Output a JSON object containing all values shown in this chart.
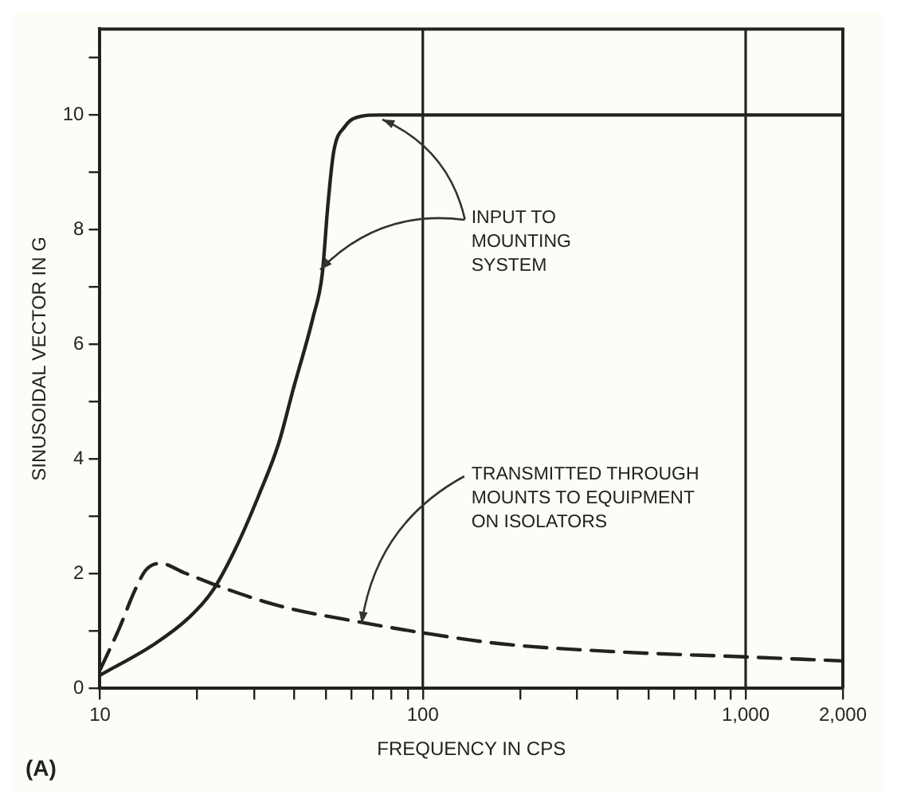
{
  "chart_data": {
    "type": "line",
    "xlabel": "FREQUENCY IN CPS",
    "ylabel": "SINUSOIDAL VECTOR IN G",
    "log": "x",
    "xlim": [
      10,
      2000
    ],
    "ylim": [
      0,
      11.5
    ],
    "xticks": [
      10,
      {
        "value": 20,
        "label": null
      },
      {
        "value": 30,
        "label": null
      },
      {
        "value": 40,
        "label": null
      },
      {
        "value": 50,
        "label": null
      },
      {
        "value": 60,
        "label": null
      },
      {
        "value": 70,
        "label": null
      },
      {
        "value": 80,
        "label": null
      },
      {
        "value": 90,
        "label": null
      },
      100,
      {
        "value": 200,
        "label": null
      },
      {
        "value": 300,
        "label": null
      },
      {
        "value": 400,
        "label": null
      },
      {
        "value": 500,
        "label": null
      },
      {
        "value": 600,
        "label": null
      },
      {
        "value": 700,
        "label": null
      },
      {
        "value": 800,
        "label": null
      },
      {
        "value": 900,
        "label": null
      },
      {
        "value": 1000,
        "label": "1,000"
      },
      {
        "value": 2000,
        "label": "2,000"
      }
    ],
    "yticks": [
      0,
      {
        "value": 1,
        "label": null
      },
      2,
      {
        "value": 3,
        "label": null
      },
      4,
      {
        "value": 5,
        "label": null
      },
      6,
      {
        "value": 7,
        "label": null
      },
      8,
      {
        "value": 9,
        "label": null
      },
      10,
      {
        "value": 11,
        "label": null
      }
    ],
    "grid": false,
    "legend": false,
    "marker": "none",
    "ref_lines": [
      {
        "axis": "x",
        "value": 100
      },
      {
        "axis": "x",
        "value": 1000
      }
    ],
    "series": [
      {
        "color": "#222222",
        "line_style": "solid",
        "x": [
          10,
          14.8,
          18.9,
          22.3,
          26.3,
          31,
          35.8,
          39.6,
          45.8,
          48.8,
          50.8,
          52.9,
          57.4,
          64.7,
          73.3,
          100,
          1000,
          2000
        ],
        "values": [
          0.23,
          0.78,
          1.24,
          1.7,
          2.44,
          3.36,
          4.28,
          5.2,
          6.49,
          7.22,
          8.42,
          9.34,
          9.8,
          9.98,
          10,
          10,
          10,
          10
        ]
      },
      {
        "color": "#222222",
        "line_style": "dashed",
        "x": [
          10,
          11.5,
          12.8,
          13.9,
          15.4,
          18.2,
          24.2,
          36.5,
          64.9,
          100,
          174,
          396,
          1000,
          2000
        ],
        "values": [
          0.32,
          1.06,
          1.7,
          2.07,
          2.18,
          2.02,
          1.75,
          1.43,
          1.15,
          0.97,
          0.78,
          0.64,
          0.55,
          0.48
        ]
      }
    ],
    "annotations": [
      {
        "text": "INPUT TO MOUNTING SYSTEM",
        "x": 75,
        "y": 10
      },
      {
        "text": "TRANSMITTED THROUGH MOUNTS TO EQUIPMENT ON ISOLATORS",
        "x": 65,
        "y": 1.2
      },
      "(A)"
    ]
  }
}
